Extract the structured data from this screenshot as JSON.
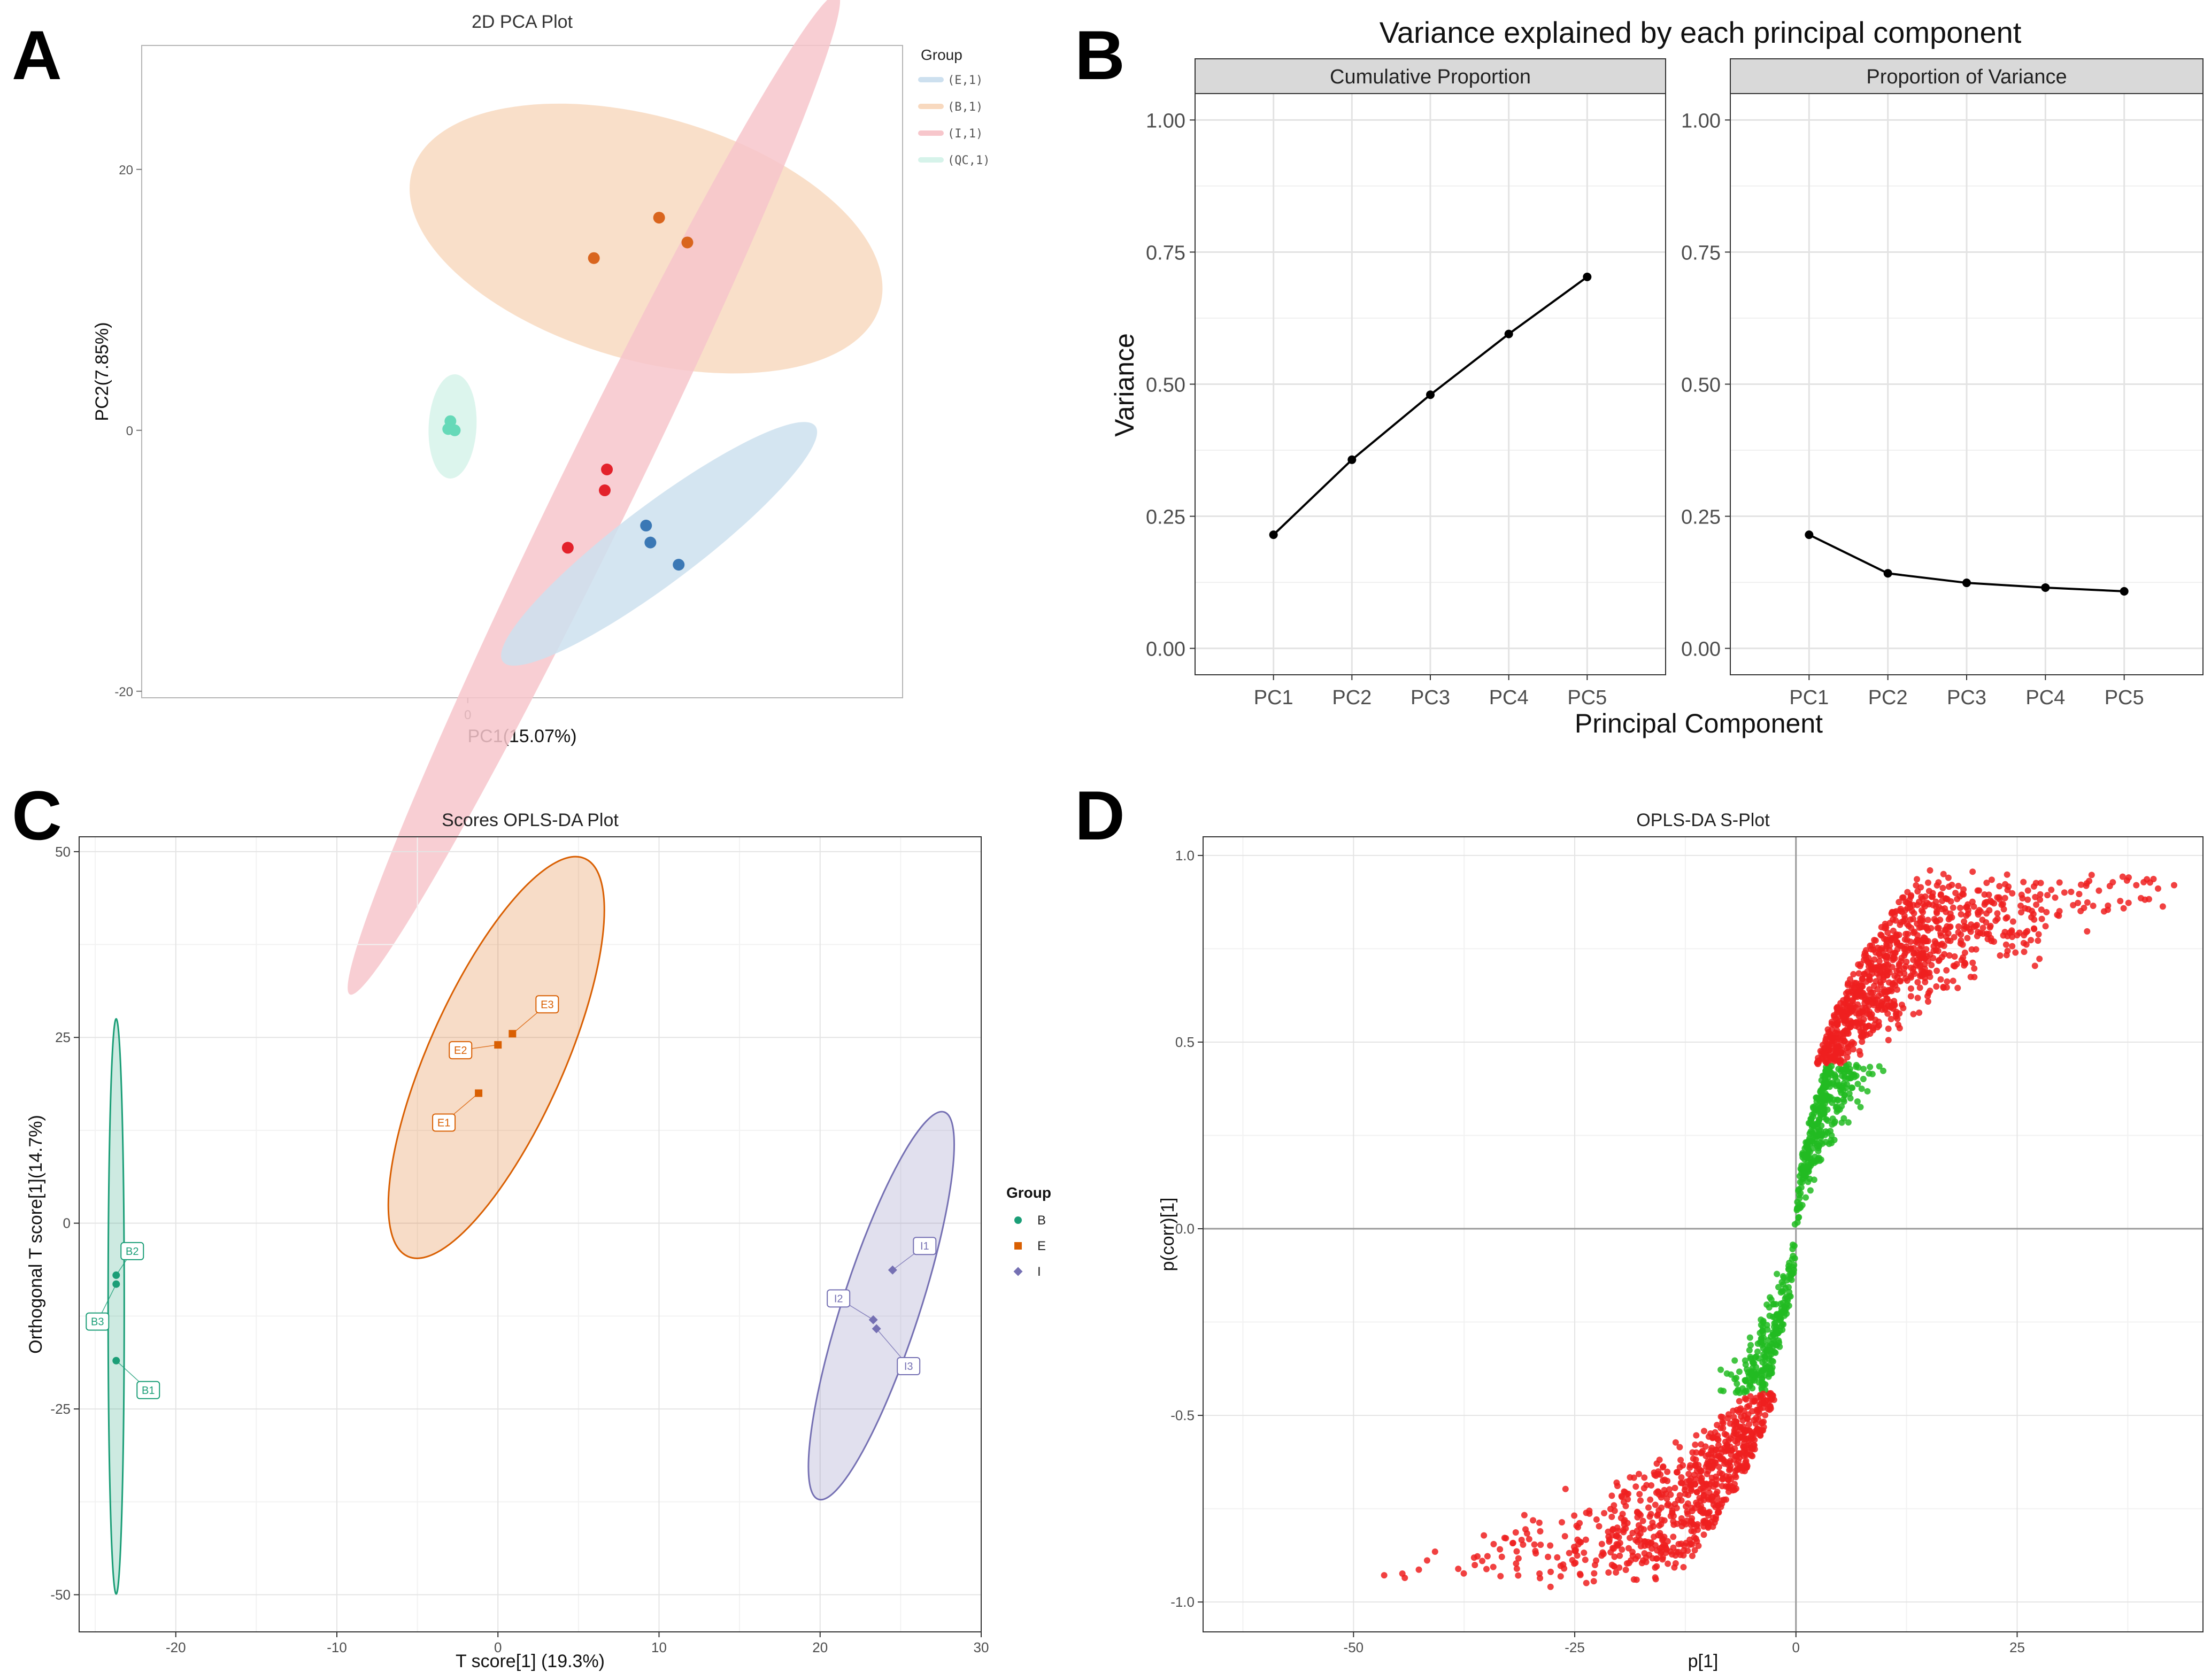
{
  "figure": {
    "panel_labels": [
      "A",
      "B",
      "C",
      "D"
    ]
  },
  "chart_data": [
    {
      "panel": "A",
      "type": "scatter",
      "title": "2D PCA Plot",
      "xlabel": "PC1(15.07%)",
      "ylabel": "PC2(7.85%)",
      "xlim": [
        -15,
        20
      ],
      "ylim": [
        -20.5,
        29.5
      ],
      "xticks": [
        0
      ],
      "yticks": [
        -20,
        0,
        20
      ],
      "legend": {
        "title": "Group",
        "position": "top-right",
        "entries": [
          {
            "label": "(E,1)",
            "color": "#cde0ef"
          },
          {
            "label": "(B,1)",
            "color": "#f8d9bf"
          },
          {
            "label": "(I,1)",
            "color": "#f7c6cb"
          },
          {
            "label": "(QC,1)",
            "color": "#d6f3ea"
          }
        ]
      },
      "series": [
        {
          "name": "E",
          "color": "#3b78b5",
          "fill": "#cde0ef",
          "points": [
            [
              8.2,
              -7.3
            ],
            [
              8.4,
              -8.6
            ],
            [
              9.7,
              -10.3
            ]
          ],
          "ellipse": {
            "center": [
              8.8,
              -8.7
            ],
            "rx": 9.0,
            "ry": 1.8,
            "angle_deg": -37
          }
        },
        {
          "name": "B",
          "color": "#d9651e",
          "fill": "#f8d9bf",
          "points": [
            [
              5.8,
              13.2
            ],
            [
              8.8,
              16.3
            ],
            [
              10.1,
              14.4
            ]
          ],
          "ellipse": {
            "center": [
              8.2,
              14.7
            ],
            "rx": 11.2,
            "ry": 5.6,
            "angle_deg": 16
          }
        },
        {
          "name": "I",
          "color": "#e3222b",
          "fill": "#f7c6cb",
          "points": [
            [
              6.4,
              -3.0
            ],
            [
              6.3,
              -4.6
            ],
            [
              4.6,
              -9.0
            ]
          ],
          "ellipse": {
            "center": [
              5.8,
              -4.9
            ],
            "rx": 25.6,
            "ry": 1.7,
            "angle_deg": -64
          }
        },
        {
          "name": "QC",
          "color": "#66d9b8",
          "fill": "#d6f3ea",
          "points": [
            [
              -0.8,
              0.7
            ],
            [
              -0.9,
              0.1
            ],
            [
              -0.6,
              0.0
            ]
          ],
          "ellipse": {
            "center": [
              -0.7,
              0.3
            ],
            "rx": 2.4,
            "ry": 1.1,
            "angle_deg": -87
          }
        }
      ]
    },
    {
      "panel": "B",
      "type": "line",
      "title": "Variance explained by each principal component",
      "xlabel": "Principal Component",
      "ylabel": "Variance",
      "categories": [
        "PC1",
        "PC2",
        "PC3",
        "PC4",
        "PC5"
      ],
      "ylim": [
        -0.05,
        1.05
      ],
      "yticks": [
        "0.00",
        "0.25",
        "0.50",
        "0.75",
        "1.00"
      ],
      "facets": [
        {
          "label": "Cumulative Proportion",
          "values": [
            0.215,
            0.357,
            0.48,
            0.595,
            0.703
          ]
        },
        {
          "label": "Proportion of Variance",
          "values": [
            0.215,
            0.142,
            0.124,
            0.115,
            0.108
          ]
        }
      ]
    },
    {
      "panel": "C",
      "type": "scatter",
      "title": "Scores OPLS-DA Plot",
      "xlabel": "T score[1] (19.3%)",
      "ylabel": "Orthogonal T score[1](14.7%)",
      "xlim": [
        -26,
        30
      ],
      "ylim": [
        -55,
        52
      ],
      "xticks": [
        -20,
        -10,
        0,
        10,
        20,
        30
      ],
      "yticks": [
        -50,
        -25,
        0,
        25,
        50
      ],
      "legend": {
        "title": "Group",
        "position": "right",
        "entries": [
          {
            "label": "B",
            "color": "#1b9e77"
          },
          {
            "label": "E",
            "color": "#d95f02"
          },
          {
            "label": "I",
            "color": "#7570b3"
          }
        ]
      },
      "series": [
        {
          "name": "B",
          "color": "#1b9e77",
          "marker": "circle",
          "points": [
            {
              "label": "B1",
              "x": -23.7,
              "y": -18.5
            },
            {
              "label": "B2",
              "x": -23.7,
              "y": -7.0
            },
            {
              "label": "B3",
              "x": -23.7,
              "y": -8.2
            }
          ],
          "ellipse": {
            "center": [
              -23.7,
              -11.2
            ],
            "rx": 38.7,
            "ry": 0.25,
            "angle_deg": -90
          }
        },
        {
          "name": "E",
          "color": "#d95f02",
          "marker": "square",
          "points": [
            {
              "label": "E1",
              "x": -1.2,
              "y": 17.5
            },
            {
              "label": "E2",
              "x": 0.0,
              "y": 24.0
            },
            {
              "label": "E3",
              "x": 0.9,
              "y": 25.5
            }
          ],
          "ellipse": {
            "center": [
              -0.1,
              22.3
            ],
            "rx": 29.3,
            "ry": 2.1,
            "angle_deg": -66
          }
        },
        {
          "name": "I",
          "color": "#7570b3",
          "marker": "diamond",
          "points": [
            {
              "label": "I1",
              "x": 24.5,
              "y": -6.3
            },
            {
              "label": "I2",
              "x": 23.3,
              "y": -13.0
            },
            {
              "label": "I3",
              "x": 23.5,
              "y": -14.2
            }
          ],
          "ellipse": {
            "center": [
              23.8,
              -11.1
            ],
            "rx": 27.4,
            "ry": 1.2,
            "angle_deg": -72
          }
        }
      ]
    },
    {
      "panel": "D",
      "type": "scatter",
      "title": "OPLS-DA S-Plot",
      "xlabel": "p[1]",
      "ylabel": "p(corr)[1]",
      "xlim": [
        -67,
        46
      ],
      "ylim": [
        -1.08,
        1.05
      ],
      "xticks": [
        -50,
        -25,
        0,
        25
      ],
      "yticks": [
        "-1.0",
        "-0.5",
        "0.0",
        "0.5",
        "1.0"
      ],
      "threshold_abs_corr": 0.44,
      "colors": {
        "significant": "#ee2020",
        "not_significant": "#22bb22"
      },
      "n_points": 2200
    }
  ]
}
